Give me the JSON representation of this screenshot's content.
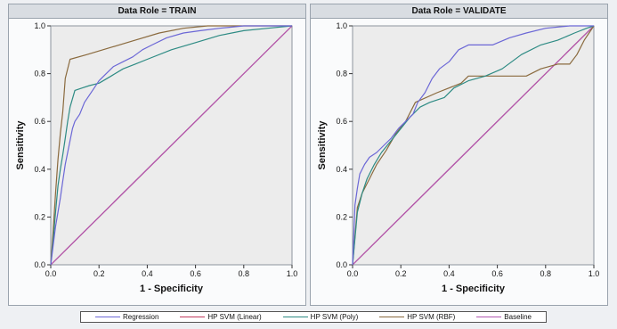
{
  "legend": [
    {
      "name": "Regression",
      "color": "#6b67d6"
    },
    {
      "name": "HP SVM (Linear)",
      "color": "#c23b5e"
    },
    {
      "name": "HP SVM (Poly)",
      "color": "#2e8b84"
    },
    {
      "name": "HP SVM (RBF)",
      "color": "#8a6a3e"
    },
    {
      "name": "Baseline",
      "color": "#b057b0"
    }
  ],
  "chart_data": [
    {
      "type": "line",
      "title": "Data Role = TRAIN",
      "xlabel": "1 - Specificity",
      "ylabel": "Sensitivity",
      "xlim": [
        0,
        1
      ],
      "ylim": [
        0,
        1
      ],
      "xticks": [
        "0.0",
        "0.2",
        "0.4",
        "0.6",
        "0.8",
        "1.0"
      ],
      "yticks": [
        "0.0",
        "0.2",
        "0.4",
        "0.6",
        "0.8",
        "1.0"
      ],
      "grid": false,
      "series": [
        {
          "name": "Regression",
          "color": "#6b67d6",
          "points": [
            [
              0,
              0
            ],
            [
              0.01,
              0.08
            ],
            [
              0.02,
              0.16
            ],
            [
              0.03,
              0.22
            ],
            [
              0.04,
              0.28
            ],
            [
              0.05,
              0.35
            ],
            [
              0.06,
              0.42
            ],
            [
              0.07,
              0.47
            ],
            [
              0.08,
              0.52
            ],
            [
              0.09,
              0.57
            ],
            [
              0.1,
              0.6
            ],
            [
              0.12,
              0.63
            ],
            [
              0.14,
              0.68
            ],
            [
              0.16,
              0.71
            ],
            [
              0.18,
              0.74
            ],
            [
              0.2,
              0.77
            ],
            [
              0.23,
              0.8
            ],
            [
              0.26,
              0.83
            ],
            [
              0.3,
              0.85
            ],
            [
              0.34,
              0.87
            ],
            [
              0.38,
              0.9
            ],
            [
              0.42,
              0.92
            ],
            [
              0.48,
              0.95
            ],
            [
              0.55,
              0.97
            ],
            [
              0.62,
              0.98
            ],
            [
              0.7,
              0.99
            ],
            [
              0.8,
              1.0
            ],
            [
              1,
              1.0
            ]
          ]
        },
        {
          "name": "HP SVM (Linear)",
          "color": "#c23b5e",
          "points": [
            [
              0,
              0
            ],
            [
              1,
              1
            ]
          ]
        },
        {
          "name": "HP SVM (Poly)",
          "color": "#2e8b84",
          "points": [
            [
              0,
              0
            ],
            [
              0.01,
              0.1
            ],
            [
              0.02,
              0.22
            ],
            [
              0.03,
              0.33
            ],
            [
              0.04,
              0.4
            ],
            [
              0.05,
              0.46
            ],
            [
              0.06,
              0.53
            ],
            [
              0.07,
              0.6
            ],
            [
              0.08,
              0.66
            ],
            [
              0.1,
              0.73
            ],
            [
              0.13,
              0.74
            ],
            [
              0.16,
              0.75
            ],
            [
              0.2,
              0.76
            ],
            [
              0.25,
              0.79
            ],
            [
              0.3,
              0.82
            ],
            [
              0.35,
              0.84
            ],
            [
              0.4,
              0.86
            ],
            [
              0.5,
              0.9
            ],
            [
              0.6,
              0.93
            ],
            [
              0.7,
              0.96
            ],
            [
              0.8,
              0.98
            ],
            [
              0.9,
              0.99
            ],
            [
              1,
              1.0
            ]
          ]
        },
        {
          "name": "HP SVM (RBF)",
          "color": "#8a6a3e",
          "points": [
            [
              0,
              0
            ],
            [
              0.01,
              0.14
            ],
            [
              0.02,
              0.3
            ],
            [
              0.03,
              0.44
            ],
            [
              0.04,
              0.55
            ],
            [
              0.05,
              0.64
            ],
            [
              0.06,
              0.78
            ],
            [
              0.08,
              0.86
            ],
            [
              0.15,
              0.88
            ],
            [
              0.25,
              0.91
            ],
            [
              0.35,
              0.94
            ],
            [
              0.45,
              0.97
            ],
            [
              0.55,
              0.99
            ],
            [
              0.65,
              1.0
            ],
            [
              1,
              1.0
            ]
          ]
        },
        {
          "name": "Baseline",
          "color": "#b057b0",
          "points": [
            [
              0,
              0
            ],
            [
              1,
              1
            ]
          ]
        }
      ]
    },
    {
      "type": "line",
      "title": "Data Role = VALIDATE",
      "xlabel": "1 - Specificity",
      "ylabel": "Sensitivity",
      "xlim": [
        0,
        1
      ],
      "ylim": [
        0,
        1
      ],
      "xticks": [
        "0.0",
        "0.2",
        "0.4",
        "0.6",
        "0.8",
        "1.0"
      ],
      "yticks": [
        "0.0",
        "0.2",
        "0.4",
        "0.6",
        "0.8",
        "1.0"
      ],
      "grid": false,
      "series": [
        {
          "name": "Regression",
          "color": "#6b67d6",
          "points": [
            [
              0,
              0
            ],
            [
              0.01,
              0.25
            ],
            [
              0.02,
              0.32
            ],
            [
              0.03,
              0.38
            ],
            [
              0.05,
              0.42
            ],
            [
              0.07,
              0.45
            ],
            [
              0.1,
              0.47
            ],
            [
              0.13,
              0.5
            ],
            [
              0.16,
              0.53
            ],
            [
              0.19,
              0.57
            ],
            [
              0.22,
              0.6
            ],
            [
              0.25,
              0.63
            ],
            [
              0.27,
              0.68
            ],
            [
              0.3,
              0.72
            ],
            [
              0.33,
              0.78
            ],
            [
              0.36,
              0.82
            ],
            [
              0.4,
              0.85
            ],
            [
              0.44,
              0.9
            ],
            [
              0.48,
              0.92
            ],
            [
              0.58,
              0.92
            ],
            [
              0.65,
              0.95
            ],
            [
              0.72,
              0.97
            ],
            [
              0.8,
              0.99
            ],
            [
              0.9,
              1.0
            ],
            [
              1,
              1.0
            ]
          ]
        },
        {
          "name": "HP SVM (Linear)",
          "color": "#c23b5e",
          "points": [
            [
              0,
              0
            ],
            [
              1,
              1
            ]
          ]
        },
        {
          "name": "HP SVM (Poly)",
          "color": "#2e8b84",
          "points": [
            [
              0,
              0
            ],
            [
              0.02,
              0.22
            ],
            [
              0.04,
              0.3
            ],
            [
              0.06,
              0.36
            ],
            [
              0.09,
              0.42
            ],
            [
              0.12,
              0.47
            ],
            [
              0.16,
              0.52
            ],
            [
              0.2,
              0.57
            ],
            [
              0.24,
              0.62
            ],
            [
              0.28,
              0.66
            ],
            [
              0.32,
              0.68
            ],
            [
              0.38,
              0.7
            ],
            [
              0.42,
              0.74
            ],
            [
              0.48,
              0.77
            ],
            [
              0.55,
              0.79
            ],
            [
              0.62,
              0.82
            ],
            [
              0.7,
              0.88
            ],
            [
              0.78,
              0.92
            ],
            [
              0.85,
              0.94
            ],
            [
              0.92,
              0.97
            ],
            [
              0.97,
              0.99
            ],
            [
              1,
              1.0
            ]
          ]
        },
        {
          "name": "HP SVM (RBF)",
          "color": "#8a6a3e",
          "points": [
            [
              0,
              0
            ],
            [
              0.02,
              0.24
            ],
            [
              0.04,
              0.3
            ],
            [
              0.07,
              0.36
            ],
            [
              0.1,
              0.42
            ],
            [
              0.14,
              0.48
            ],
            [
              0.18,
              0.55
            ],
            [
              0.22,
              0.6
            ],
            [
              0.26,
              0.68
            ],
            [
              0.35,
              0.72
            ],
            [
              0.45,
              0.76
            ],
            [
              0.48,
              0.79
            ],
            [
              0.6,
              0.79
            ],
            [
              0.72,
              0.79
            ],
            [
              0.78,
              0.82
            ],
            [
              0.85,
              0.84
            ],
            [
              0.9,
              0.84
            ],
            [
              0.93,
              0.88
            ],
            [
              0.96,
              0.94
            ],
            [
              0.98,
              0.97
            ],
            [
              1,
              1.0
            ]
          ]
        },
        {
          "name": "Baseline",
          "color": "#b057b0",
          "points": [
            [
              0,
              0
            ],
            [
              1,
              1
            ]
          ]
        }
      ]
    }
  ]
}
